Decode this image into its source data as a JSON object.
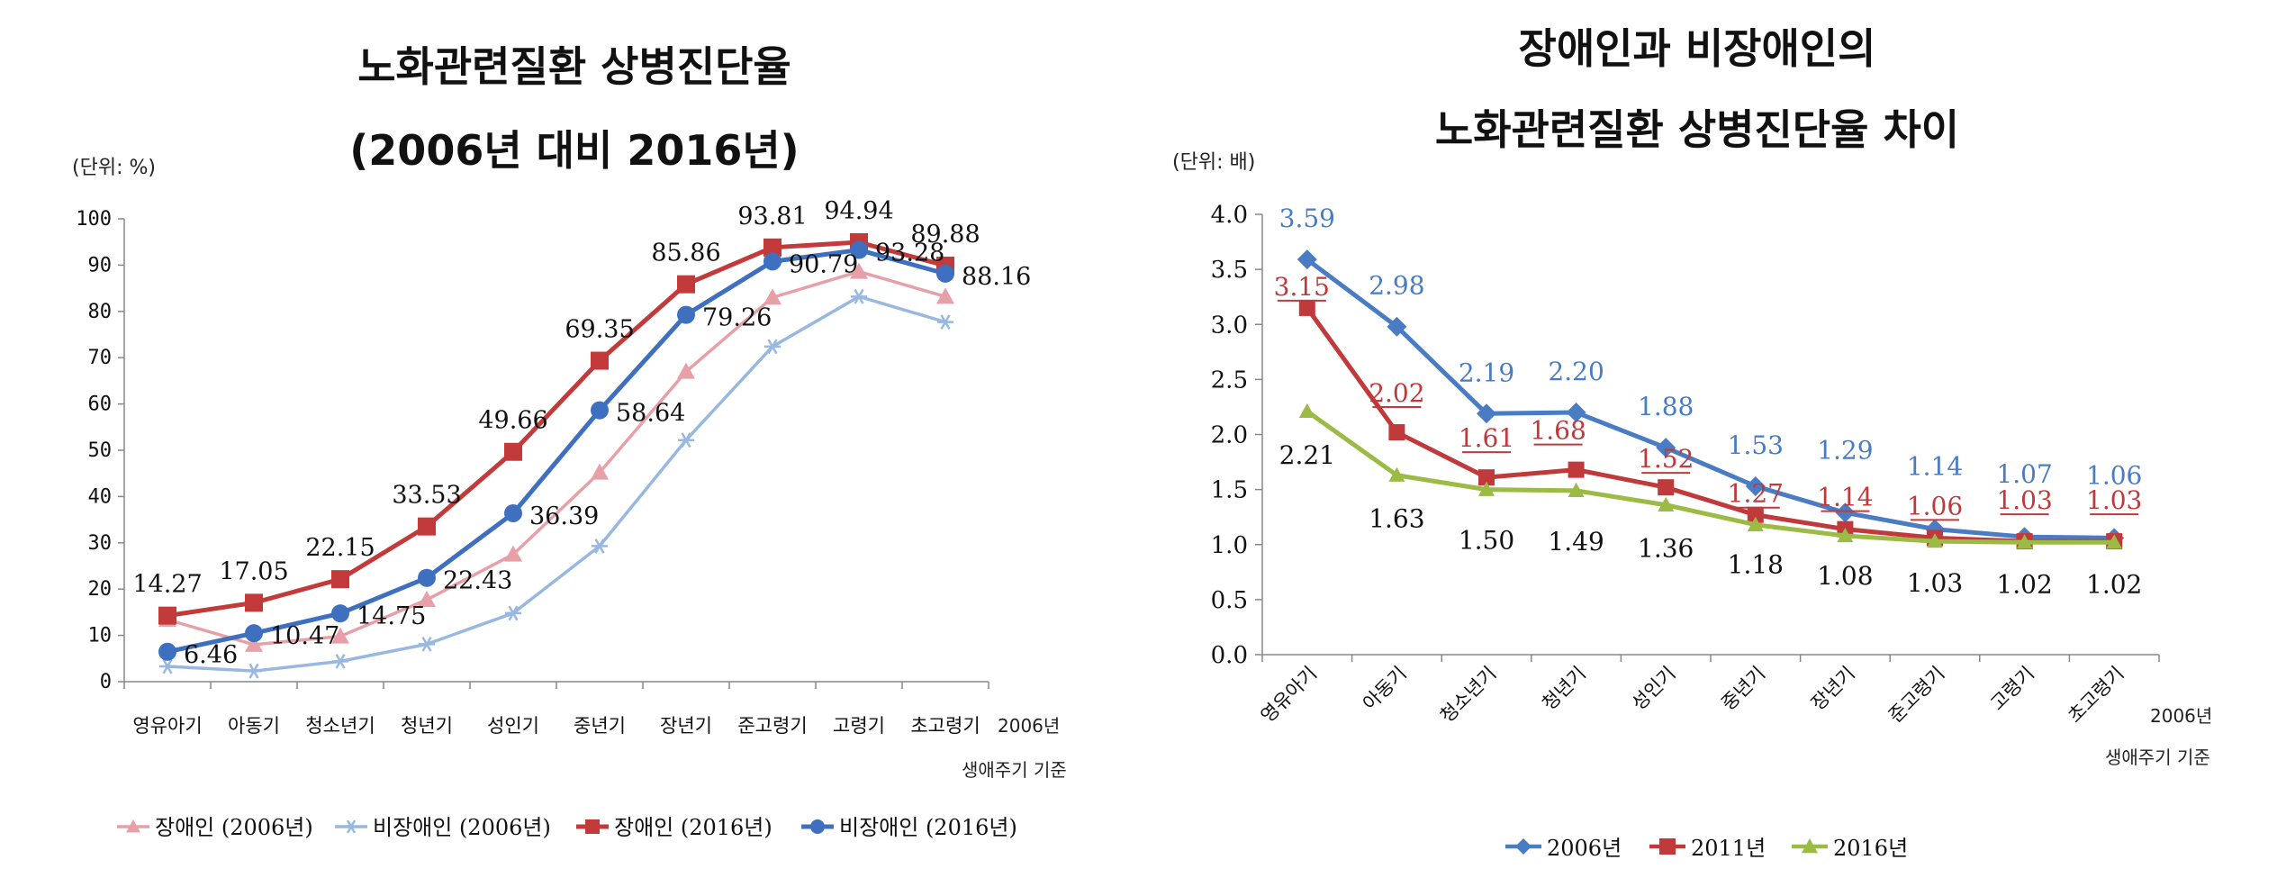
{
  "chart_data": [
    {
      "type": "line",
      "title": "노화관련질환 상병진단율",
      "subtitle": "(2006년 대비 2016년)",
      "unit": "(단위: %)",
      "categories": [
        "영유아기",
        "아동기",
        "청소년기",
        "청년기",
        "성인기",
        "중년기",
        "장년기",
        "준고령기",
        "고령기",
        "초고령기"
      ],
      "x_note": "2006년",
      "x_caption": "생애주기 기준",
      "ylim": [
        0,
        100
      ],
      "yticks": [
        "0",
        "10",
        "20",
        "30",
        "40",
        "50",
        "60",
        "70",
        "80",
        "90",
        "100"
      ],
      "grid": false,
      "legend_position": "bottom",
      "series": [
        {
          "name": "장애인 (2006년)",
          "color": "#e8a0a8",
          "marker": "triangle",
          "values": [
            13.4,
            8.0,
            9.8,
            17.7,
            27.5,
            45.2,
            67.0,
            83.0,
            88.6,
            83.2
          ]
        },
        {
          "name": "비장애인 (2006년)",
          "color": "#98b8e0",
          "marker": "star",
          "values": [
            3.3,
            2.3,
            4.4,
            8.1,
            14.8,
            29.3,
            52.2,
            72.4,
            83.2,
            77.7
          ]
        },
        {
          "name": "장애인 (2016년)",
          "color": "#c33a3a",
          "marker": "square",
          "values": [
            14.27,
            17.05,
            22.15,
            33.53,
            49.66,
            69.35,
            85.86,
            93.81,
            94.94,
            89.88
          ]
        },
        {
          "name": "비장애인 (2016년)",
          "color": "#3f6fbf",
          "marker": "circle",
          "values": [
            6.46,
            10.47,
            14.75,
            22.43,
            36.39,
            58.64,
            79.26,
            90.79,
            93.28,
            88.16
          ]
        }
      ],
      "data_labels": {
        "장애인 (2016년)": [
          "14.27",
          "17.05",
          "22.15",
          "33.53",
          "49.66",
          "69.35",
          "85.86",
          "93.81",
          "94.94",
          "89.88"
        ],
        "비장애인 (2016년)": [
          "6.46",
          "10.47",
          "14.75",
          "22.43",
          "36.39",
          "58.64",
          "79.26",
          "90.79",
          "93.28",
          "88.16"
        ]
      }
    },
    {
      "type": "line",
      "title": "장애인과 비장애인의",
      "subtitle": "노화관련질환 상병진단율 차이",
      "unit": "(단위: 배)",
      "categories": [
        "영유아기",
        "아동기",
        "청소년기",
        "청년기",
        "성인기",
        "중년기",
        "장년기",
        "준고령기",
        "고령기",
        "초고령기"
      ],
      "x_note": "2006년",
      "x_caption": "생애주기 기준",
      "ylim": [
        0,
        4.0
      ],
      "yticks": [
        "0.0",
        "0.5",
        "1.0",
        "1.5",
        "2.0",
        "2.5",
        "3.0",
        "3.5",
        "4.0"
      ],
      "grid": false,
      "legend_position": "bottom",
      "series": [
        {
          "name": "2006년",
          "color": "#4a7cc4",
          "marker": "diamond",
          "values": [
            3.59,
            2.98,
            2.19,
            2.2,
            1.88,
            1.53,
            1.29,
            1.14,
            1.07,
            1.06
          ]
        },
        {
          "name": "2011년",
          "color": "#c0393b",
          "marker": "square",
          "values": [
            3.15,
            2.02,
            1.61,
            1.68,
            1.52,
            1.27,
            1.14,
            1.06,
            1.03,
            1.03
          ]
        },
        {
          "name": "2016년",
          "color": "#9bbb45",
          "marker": "triangle",
          "values": [
            2.21,
            1.63,
            1.5,
            1.49,
            1.36,
            1.18,
            1.08,
            1.03,
            1.02,
            1.02
          ]
        }
      ],
      "data_labels": {
        "2006년": [
          "3.59",
          "2.98",
          "2.19",
          "2.20",
          "1.88",
          "1.53",
          "1.29",
          "1.14",
          "1.07",
          "1.06"
        ],
        "2011년": [
          "3.15",
          "2.02",
          "1.61",
          "1.68",
          "1.52",
          "1.27",
          "1.14",
          "1.06",
          "1.03",
          "1.03"
        ],
        "2016년": [
          "2.21",
          "1.63",
          "1.50",
          "1.49",
          "1.36",
          "1.18",
          "1.08",
          "1.03",
          "1.02",
          "1.02"
        ]
      }
    }
  ]
}
